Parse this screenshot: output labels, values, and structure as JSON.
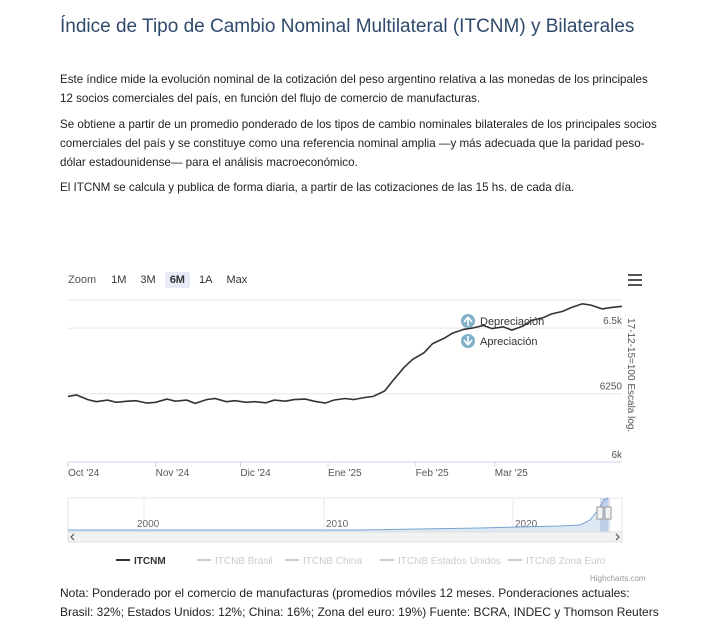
{
  "page": {
    "title": "Índice de Tipo de Cambio Nominal Multilateral (ITCNM) y Bilaterales",
    "paragraph1": "Este índice mide la evolución nominal de la cotización del peso argentino relativa a las monedas de los principales 12 socios comerciales del país, en función del flujo de comercio de manufacturas.",
    "paragraph2": "Se obtiene a partir de un promedio ponderado de los tipos de cambio nominales bilaterales de los principales socios comerciales del país y se constituye como una referencia nominal amplia —y más adecuada que la paridad peso-dólar estadounidense— para el análisis macroeconómico.",
    "paragraph3": "El ITCNM se calcula y publica de forma diaria, a partir de las cotizaciones de las 15 hs. de cada día.",
    "note": "Nota: Ponderado por el comercio de manufacturas (promedios móviles 12 meses. Ponderaciones actuales: Brasil: 32%; Estados Unidos: 12%; China: 16%; Zona del euro: 19%) Fuente: BCRA, INDEC y Thomson Reuters",
    "credits": "Highcharts.com"
  },
  "zoom": {
    "label": "Zoom",
    "buttons": [
      "1M",
      "3M",
      "6M",
      "1A",
      "Max"
    ],
    "active": "6M"
  },
  "annotations": {
    "up": "Depreciación",
    "down": "Apreciación",
    "up_color": "#7fb1c8",
    "down_color": "#7fb1c8"
  },
  "chart_data": {
    "type": "line",
    "y_axis_title": "17-12-15=100 Escala log.",
    "y_scale": "log",
    "y_ticks": [
      "6k",
      "6250",
      "6.5k"
    ],
    "y_tick_values": [
      6000,
      6250,
      6500
    ],
    "ylim": [
      6000,
      6610
    ],
    "x_ticks": [
      "Oct '24",
      "Nov '24",
      "Dic '24",
      "Ene '25",
      "Feb '25",
      "Mar '25"
    ],
    "xlim": [
      "2024-10-01",
      "2025-04-15"
    ],
    "grid": true,
    "series": [
      {
        "name": "ITCNM",
        "color": "#333333",
        "x": [
          "2024-10-01",
          "2024-10-04",
          "2024-10-08",
          "2024-10-11",
          "2024-10-15",
          "2024-10-18",
          "2024-10-22",
          "2024-10-25",
          "2024-10-29",
          "2024-11-01",
          "2024-11-05",
          "2024-11-08",
          "2024-11-12",
          "2024-11-15",
          "2024-11-19",
          "2024-11-22",
          "2024-11-26",
          "2024-11-29",
          "2024-12-03",
          "2024-12-06",
          "2024-12-10",
          "2024-12-13",
          "2024-12-17",
          "2024-12-20",
          "2024-12-24",
          "2024-12-27",
          "2024-12-31",
          "2025-01-03",
          "2025-01-07",
          "2025-01-10",
          "2025-01-14",
          "2025-01-17",
          "2025-01-21",
          "2025-01-24",
          "2025-01-28",
          "2025-01-31",
          "2025-02-04",
          "2025-02-07",
          "2025-02-11",
          "2025-02-14",
          "2025-02-18",
          "2025-02-21",
          "2025-02-25",
          "2025-02-28",
          "2025-03-04",
          "2025-03-07",
          "2025-03-11",
          "2025-03-14",
          "2025-03-18",
          "2025-03-21",
          "2025-03-25",
          "2025-03-28",
          "2025-04-01",
          "2025-04-04",
          "2025-04-08",
          "2025-04-11",
          "2025-04-15"
        ],
        "values": [
          6240,
          6245,
          6228,
          6220,
          6226,
          6218,
          6222,
          6224,
          6215,
          6218,
          6230,
          6222,
          6226,
          6214,
          6228,
          6232,
          6220,
          6224,
          6218,
          6220,
          6216,
          6226,
          6222,
          6228,
          6230,
          6222,
          6215,
          6226,
          6232,
          6228,
          6236,
          6240,
          6260,
          6300,
          6350,
          6380,
          6405,
          6440,
          6460,
          6480,
          6495,
          6500,
          6510,
          6498,
          6505,
          6492,
          6508,
          6530,
          6540,
          6555,
          6565,
          6580,
          6595,
          6590,
          6575,
          6580,
          6585
        ]
      }
    ],
    "legend": [
      "ITCNM",
      "ITCNB Brasil",
      "ITCNB China",
      "ITCNB Estados Unidos",
      "ITCNB Zona Euro"
    ],
    "legend_active": [
      "ITCNM"
    ],
    "legend_placement": "bottom",
    "navigator": {
      "x_ticks": [
        "2000",
        "2010",
        "2020"
      ]
    }
  }
}
